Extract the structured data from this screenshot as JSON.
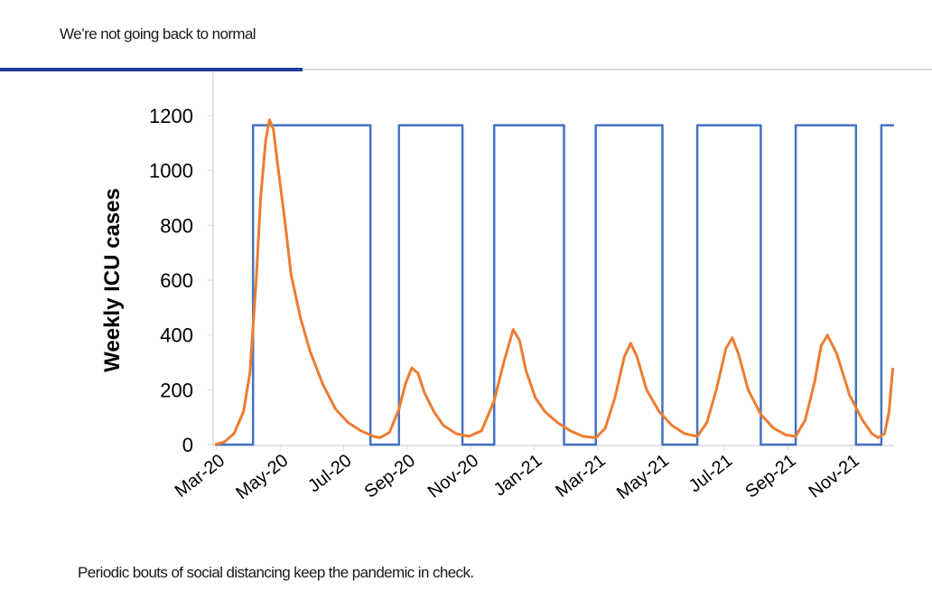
{
  "header": {
    "title": "We’re not going back to normal",
    "accent_color": "#1f3d99"
  },
  "caption": "Periodic bouts of social distancing keep the pandemic in check.",
  "chart_data": {
    "type": "line",
    "title": "",
    "xlabel": "",
    "ylabel": "Weekly ICU cases",
    "ylim": [
      0,
      1200
    ],
    "y_ticks": [
      0,
      200,
      400,
      600,
      800,
      1000,
      1200
    ],
    "x_ticks": [
      "Mar-20",
      "May-20",
      "Jul-20",
      "Sep-20",
      "Nov-20",
      "Jan-21",
      "Mar-21",
      "May-21",
      "Jul-21",
      "Sep-21",
      "Nov-21"
    ],
    "grid": false,
    "legend": "none",
    "series": [
      {
        "color": "#4472c4",
        "style": "step",
        "x": [
          0,
          0.6,
          0.6,
          2.45,
          2.45,
          2.9,
          2.9,
          3.9,
          3.9,
          4.4,
          4.4,
          5.5,
          5.5,
          6.0,
          6.0,
          7.05,
          7.05,
          7.6,
          7.6,
          8.6,
          8.6,
          9.15,
          9.15,
          10.1,
          10.1,
          10.5,
          10.5,
          10.7
        ],
        "values": [
          0,
          0,
          1165,
          1165,
          0,
          0,
          1165,
          1165,
          0,
          0,
          1165,
          1165,
          0,
          0,
          1165,
          1165,
          0,
          0,
          1165,
          1165,
          0,
          0,
          1165,
          1165,
          0,
          0,
          1165,
          1165
        ]
      },
      {
        "color": "#ed7d31",
        "style": "line",
        "x": [
          0,
          0.15,
          0.3,
          0.45,
          0.55,
          0.65,
          0.72,
          0.8,
          0.86,
          0.92,
          1.0,
          1.1,
          1.2,
          1.35,
          1.5,
          1.7,
          1.9,
          2.1,
          2.3,
          2.5,
          2.6,
          2.75,
          2.9,
          3.0,
          3.1,
          3.2,
          3.3,
          3.45,
          3.6,
          3.8,
          4.0,
          4.2,
          4.4,
          4.55,
          4.7,
          4.8,
          4.9,
          5.05,
          5.2,
          5.4,
          5.6,
          5.8,
          6.0,
          6.15,
          6.3,
          6.45,
          6.55,
          6.65,
          6.8,
          7.0,
          7.2,
          7.4,
          7.6,
          7.75,
          7.9,
          8.05,
          8.15,
          8.25,
          8.4,
          8.6,
          8.8,
          9.0,
          9.15,
          9.3,
          9.45,
          9.55,
          9.65,
          9.8,
          10.0,
          10.2,
          10.35,
          10.45,
          10.55,
          10.62,
          10.68
        ],
        "values": [
          0,
          10,
          40,
          120,
          260,
          600,
          900,
          1110,
          1185,
          1150,
          1000,
          820,
          620,
          460,
          340,
          220,
          130,
          80,
          50,
          30,
          25,
          45,
          130,
          220,
          280,
          260,
          190,
          120,
          70,
          40,
          30,
          50,
          160,
          300,
          420,
          380,
          270,
          170,
          120,
          80,
          50,
          30,
          25,
          60,
          170,
          320,
          370,
          320,
          200,
          120,
          70,
          40,
          30,
          80,
          200,
          350,
          390,
          330,
          200,
          110,
          60,
          35,
          30,
          90,
          230,
          360,
          400,
          330,
          180,
          90,
          40,
          25,
          40,
          120,
          280
        ]
      }
    ]
  }
}
